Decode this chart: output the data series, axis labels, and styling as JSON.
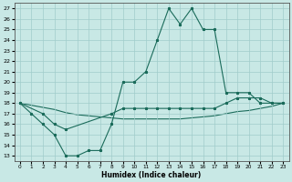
{
  "xlabel": "Humidex (Indice chaleur)",
  "bg_color": "#c8e8e5",
  "grid_color": "#a0ccca",
  "line_color": "#1a6b5a",
  "xlim": [
    -0.5,
    23.5
  ],
  "ylim": [
    12.5,
    27.5
  ],
  "yticks": [
    13,
    14,
    15,
    16,
    17,
    18,
    19,
    20,
    21,
    22,
    23,
    24,
    25,
    26,
    27
  ],
  "xticks": [
    0,
    1,
    2,
    3,
    4,
    5,
    6,
    7,
    8,
    9,
    10,
    11,
    12,
    13,
    14,
    15,
    16,
    17,
    18,
    19,
    20,
    21,
    22,
    23
  ],
  "line1_x": [
    0,
    1,
    2,
    3,
    4,
    5,
    6,
    7,
    8,
    9,
    10,
    11,
    12,
    13,
    14,
    15,
    16,
    17,
    18,
    19,
    20,
    21,
    22,
    23
  ],
  "line1_y": [
    18,
    17,
    16,
    15,
    13,
    13,
    13.5,
    13.5,
    16,
    20,
    20,
    21,
    24,
    27,
    25.5,
    27,
    25,
    25,
    19,
    19,
    19,
    18,
    18,
    18
  ],
  "line2_x": [
    0,
    2,
    3,
    4,
    8,
    9,
    10,
    11,
    12,
    13,
    14,
    15,
    16,
    17,
    18,
    19,
    20,
    21,
    22,
    23
  ],
  "line2_y": [
    18,
    17,
    16,
    15.5,
    17,
    17.5,
    17.5,
    17.5,
    17.5,
    17.5,
    17.5,
    17.5,
    17.5,
    17.5,
    18,
    18.5,
    18.5,
    18.5,
    18,
    18
  ],
  "line3_x": [
    0,
    1,
    2,
    3,
    4,
    5,
    6,
    7,
    8,
    9,
    10,
    11,
    12,
    13,
    14,
    15,
    16,
    17,
    18,
    19,
    20,
    21,
    22,
    23
  ],
  "line3_y": [
    18,
    17.8,
    17.6,
    17.4,
    17.1,
    16.9,
    16.8,
    16.7,
    16.6,
    16.5,
    16.5,
    16.5,
    16.5,
    16.5,
    16.5,
    16.6,
    16.7,
    16.8,
    17.0,
    17.2,
    17.3,
    17.5,
    17.7,
    18.0
  ]
}
